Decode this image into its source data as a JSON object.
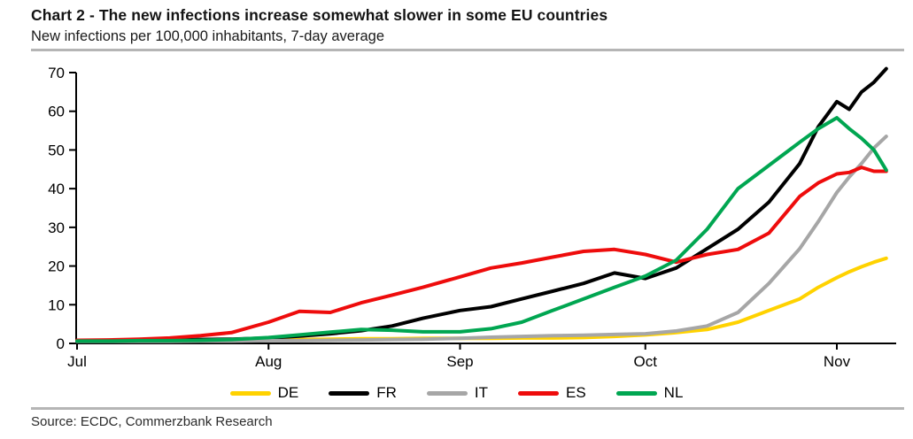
{
  "header": {
    "title": "Chart 2 - The new infections increase somewhat slower in some EU countries",
    "subtitle": "New infections per 100,000 inhabitants, 7-day average"
  },
  "source_line": "Source: ECDC, Commerzbank Research",
  "colors": {
    "axis": "#000000",
    "divider_rule": "#b5b5b5",
    "title_text": "#141414"
  },
  "chart_data": {
    "type": "line",
    "title": "Chart 2 - The new infections increase somewhat slower in some EU countries",
    "subtitle": "New infections per 100,000 inhabitants, 7-day average",
    "grid": false,
    "legend_position": "bottom",
    "x_axis": {
      "tick_labels": [
        "Jul",
        "Aug",
        "Sep",
        "Oct",
        "Nov"
      ],
      "tick_days": [
        0,
        31,
        62,
        92,
        123
      ],
      "unit": "days since Jul 1",
      "domain": [
        0,
        132
      ]
    },
    "y_axis": {
      "label": "",
      "min": 0,
      "max": 70,
      "ticks": [
        0,
        10,
        20,
        30,
        40,
        50,
        60,
        70
      ]
    },
    "x_days": [
      0,
      5,
      10,
      15,
      20,
      25,
      31,
      36,
      41,
      46,
      51,
      56,
      62,
      67,
      72,
      77,
      82,
      87,
      92,
      97,
      102,
      107,
      112,
      117,
      120,
      123,
      125,
      127,
      129,
      131
    ],
    "series": [
      {
        "name": "DE",
        "color": "#ffd200",
        "values": [
          0.7,
          0.7,
          0.7,
          0.8,
          0.8,
          0.9,
          1.0,
          1.0,
          1.1,
          1.2,
          1.2,
          1.3,
          1.3,
          1.3,
          1.4,
          1.4,
          1.5,
          1.8,
          2.2,
          2.8,
          3.6,
          5.5,
          8.5,
          11.5,
          14.5,
          17.0,
          18.5,
          19.8,
          21.0,
          22.0
        ]
      },
      {
        "name": "FR",
        "color": "#000000",
        "values": [
          0.8,
          0.8,
          0.8,
          0.9,
          1.0,
          1.1,
          1.4,
          1.9,
          2.5,
          3.3,
          4.5,
          6.5,
          8.5,
          9.5,
          11.5,
          13.5,
          15.5,
          18.2,
          16.8,
          19.5,
          24.5,
          29.5,
          36.5,
          46.5,
          56.0,
          62.5,
          60.5,
          65.0,
          67.5,
          71.0
        ]
      },
      {
        "name": "IT",
        "color": "#a6a6a6",
        "values": [
          0.5,
          0.5,
          0.5,
          0.5,
          0.6,
          0.6,
          0.7,
          0.7,
          0.8,
          0.9,
          1.0,
          1.1,
          1.3,
          1.6,
          1.8,
          2.0,
          2.1,
          2.3,
          2.5,
          3.2,
          4.5,
          8.0,
          15.5,
          24.5,
          31.5,
          39.0,
          43.0,
          46.5,
          50.5,
          53.5
        ]
      },
      {
        "name": "ES",
        "color": "#ee0c0c",
        "values": [
          0.8,
          0.9,
          1.1,
          1.4,
          2.0,
          2.8,
          5.5,
          8.3,
          8.0,
          10.5,
          12.5,
          14.5,
          17.2,
          19.5,
          20.8,
          22.3,
          23.8,
          24.3,
          23.0,
          21.0,
          23.0,
          24.3,
          28.5,
          38.0,
          41.5,
          43.8,
          44.2,
          45.5,
          44.5,
          44.5
        ]
      },
      {
        "name": "NL",
        "color": "#00a651",
        "values": [
          0.6,
          0.6,
          0.7,
          0.7,
          0.8,
          1.0,
          1.5,
          2.2,
          2.9,
          3.6,
          3.4,
          3.0,
          3.0,
          3.8,
          5.5,
          8.5,
          11.5,
          14.5,
          17.4,
          21.5,
          29.5,
          40.0,
          46.0,
          52.0,
          55.5,
          58.3,
          55.5,
          53.0,
          50.0,
          44.8
        ]
      }
    ]
  }
}
